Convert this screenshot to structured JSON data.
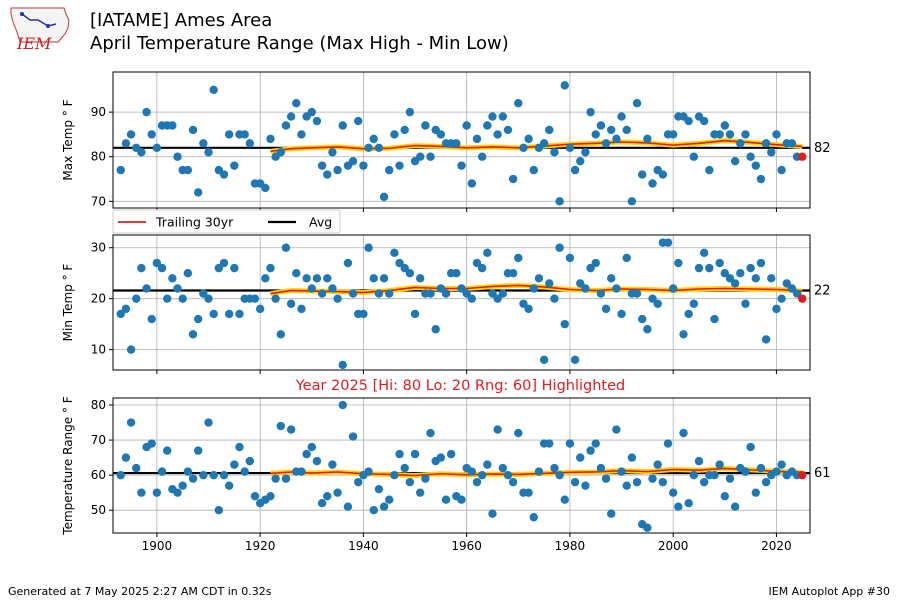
{
  "header": {
    "logo_text": "IEM",
    "title_line1": "[IATAME] Ames Area",
    "title_line2": "April Temperature Range (Max High - Min Low)"
  },
  "footer": {
    "left": "Generated at 7 May 2025 2:27 AM CDT in 0.32s",
    "right": "IEM Autoplot App #30"
  },
  "legend": {
    "trailing_label": "Trailing 30yr",
    "avg_label": "Avg"
  },
  "colors": {
    "points": "#1f77b4",
    "avg": "#000000",
    "trailing": "#e41a1c",
    "trailing_glow": "#ffd400",
    "highlight_title": "#e41a1c",
    "grid": "#b0b0b0"
  },
  "chart_data": [
    {
      "type": "scatter",
      "ylabel": "Max Temp ° F",
      "ylim": [
        68.5,
        99
      ],
      "yticks": [
        70,
        80,
        90
      ],
      "avg": 82,
      "avg_label": "82",
      "highlight": {
        "x": 2025,
        "y": 80
      },
      "x": [
        1893,
        1894,
        1895,
        1896,
        1897,
        1898,
        1899,
        1900,
        1901,
        1902,
        1903,
        1904,
        1905,
        1906,
        1907,
        1908,
        1909,
        1910,
        1911,
        1912,
        1913,
        1914,
        1915,
        1916,
        1917,
        1918,
        1919,
        1920,
        1921,
        1922,
        1923,
        1924,
        1925,
        1926,
        1927,
        1928,
        1929,
        1930,
        1931,
        1932,
        1933,
        1934,
        1935,
        1936,
        1937,
        1938,
        1939,
        1940,
        1941,
        1942,
        1943,
        1944,
        1945,
        1946,
        1947,
        1948,
        1949,
        1950,
        1951,
        1952,
        1953,
        1954,
        1955,
        1956,
        1957,
        1958,
        1959,
        1960,
        1961,
        1962,
        1963,
        1964,
        1965,
        1966,
        1967,
        1968,
        1969,
        1970,
        1971,
        1972,
        1973,
        1974,
        1975,
        1976,
        1977,
        1978,
        1979,
        1980,
        1981,
        1982,
        1983,
        1984,
        1985,
        1986,
        1987,
        1988,
        1989,
        1990,
        1991,
        1992,
        1993,
        1994,
        1995,
        1996,
        1997,
        1998,
        1999,
        2000,
        2001,
        2002,
        2003,
        2004,
        2005,
        2006,
        2007,
        2008,
        2009,
        2010,
        2011,
        2012,
        2013,
        2014,
        2015,
        2016,
        2017,
        2018,
        2019,
        2020,
        2021,
        2022,
        2023,
        2024,
        2025
      ],
      "y": [
        77,
        83,
        85,
        82,
        81,
        90,
        85,
        82,
        87,
        87,
        87,
        80,
        77,
        77,
        86,
        72,
        83,
        81,
        95,
        77,
        76,
        85,
        78,
        85,
        85,
        83,
        74,
        74,
        73,
        84,
        80,
        81,
        87,
        89,
        92,
        85,
        89,
        90,
        88,
        78,
        76,
        81,
        77,
        87,
        78,
        79,
        88,
        78,
        82,
        84,
        82,
        71,
        77,
        85,
        78,
        86,
        90,
        79,
        80,
        87,
        80,
        86,
        85,
        83,
        83,
        83,
        78,
        87,
        74,
        84,
        80,
        87,
        89,
        85,
        89,
        86,
        75,
        92,
        82,
        84,
        77,
        82,
        83,
        86,
        81,
        70,
        96,
        82,
        77,
        79,
        81,
        90,
        85,
        87,
        83,
        86,
        84,
        89,
        86,
        70,
        92,
        76,
        84,
        74,
        77,
        76,
        85,
        85,
        89,
        89,
        88,
        80,
        89,
        88,
        77,
        85,
        85,
        87,
        85,
        79,
        83,
        85,
        80,
        78,
        75,
        83,
        81,
        85,
        77,
        83,
        83,
        80,
        80
      ],
      "trailing": [
        [
          1922,
          81.2
        ],
        [
          1926,
          81.8
        ],
        [
          1930,
          82.0
        ],
        [
          1935,
          82.2
        ],
        [
          1940,
          81.8
        ],
        [
          1945,
          81.9
        ],
        [
          1950,
          82.5
        ],
        [
          1955,
          82.3
        ],
        [
          1960,
          82.0
        ],
        [
          1965,
          82.2
        ],
        [
          1970,
          82.0
        ],
        [
          1975,
          82.4
        ],
        [
          1980,
          82.8
        ],
        [
          1985,
          83.0
        ],
        [
          1990,
          83.3
        ],
        [
          1995,
          83.1
        ],
        [
          2000,
          82.6
        ],
        [
          2005,
          83.0
        ],
        [
          2010,
          83.6
        ],
        [
          2015,
          83.2
        ],
        [
          2020,
          82.7
        ],
        [
          2025,
          82.3
        ]
      ]
    },
    {
      "type": "scatter",
      "ylabel": "Min Temp ° F",
      "ylim": [
        6,
        32.5
      ],
      "yticks": [
        10,
        20,
        30
      ],
      "avg": 21.6,
      "avg_label": "22",
      "highlight": {
        "x": 2025,
        "y": 20
      },
      "x": [
        1893,
        1894,
        1895,
        1896,
        1897,
        1898,
        1899,
        1900,
        1901,
        1902,
        1903,
        1904,
        1905,
        1906,
        1907,
        1908,
        1909,
        1910,
        1911,
        1912,
        1913,
        1914,
        1915,
        1916,
        1917,
        1918,
        1919,
        1920,
        1921,
        1922,
        1923,
        1924,
        1925,
        1926,
        1927,
        1928,
        1929,
        1930,
        1931,
        1932,
        1933,
        1934,
        1935,
        1936,
        1937,
        1938,
        1939,
        1940,
        1941,
        1942,
        1943,
        1944,
        1945,
        1946,
        1947,
        1948,
        1949,
        1950,
        1951,
        1952,
        1953,
        1954,
        1955,
        1956,
        1957,
        1958,
        1959,
        1960,
        1961,
        1962,
        1963,
        1964,
        1965,
        1966,
        1967,
        1968,
        1969,
        1970,
        1971,
        1972,
        1973,
        1974,
        1975,
        1976,
        1977,
        1978,
        1979,
        1980,
        1981,
        1982,
        1983,
        1984,
        1985,
        1986,
        1987,
        1988,
        1989,
        1990,
        1991,
        1992,
        1993,
        1994,
        1995,
        1996,
        1997,
        1998,
        1999,
        2000,
        2001,
        2002,
        2003,
        2004,
        2005,
        2006,
        2007,
        2008,
        2009,
        2010,
        2011,
        2012,
        2013,
        2014,
        2015,
        2016,
        2017,
        2018,
        2019,
        2020,
        2021,
        2022,
        2023,
        2024,
        2025
      ],
      "y": [
        17,
        18,
        10,
        20,
        26,
        22,
        16,
        27,
        26,
        20,
        24,
        22,
        20,
        25,
        13,
        16,
        21,
        20,
        17,
        26,
        27,
        17,
        26,
        17,
        20,
        20,
        20,
        18,
        24,
        26,
        20,
        13,
        30,
        19,
        25,
        18,
        24,
        22,
        24,
        21,
        24,
        22,
        20,
        7,
        27,
        21,
        17,
        17,
        30,
        24,
        21,
        24,
        21,
        29,
        27,
        26,
        25,
        17,
        24,
        21,
        21,
        14,
        22,
        21,
        25,
        25,
        22,
        21,
        20,
        27,
        26,
        29,
        21,
        20,
        21,
        25,
        25,
        28,
        19,
        18,
        22,
        24,
        8,
        23,
        20,
        30,
        15,
        28,
        8,
        23,
        22,
        26,
        27,
        21,
        18,
        24,
        22,
        17,
        28,
        21,
        21,
        16,
        14,
        20,
        19,
        31,
        31,
        22,
        27,
        13,
        17,
        19,
        26,
        29,
        26,
        16,
        27,
        25,
        24,
        23,
        25,
        19,
        26,
        24,
        27,
        12,
        24,
        18,
        20,
        23,
        22,
        21,
        20
      ],
      "trailing": [
        [
          1922,
          21.0
        ],
        [
          1926,
          21.6
        ],
        [
          1930,
          21.5
        ],
        [
          1935,
          21.4
        ],
        [
          1940,
          21.2
        ],
        [
          1945,
          21.6
        ],
        [
          1950,
          22.2
        ],
        [
          1955,
          22.0
        ],
        [
          1960,
          22.0
        ],
        [
          1965,
          22.4
        ],
        [
          1970,
          22.6
        ],
        [
          1975,
          22.3
        ],
        [
          1980,
          21.8
        ],
        [
          1985,
          21.6
        ],
        [
          1990,
          21.9
        ],
        [
          1995,
          21.8
        ],
        [
          2000,
          21.6
        ],
        [
          2005,
          21.9
        ],
        [
          2010,
          22.0
        ],
        [
          2015,
          21.9
        ],
        [
          2020,
          21.8
        ],
        [
          2025,
          21.5
        ]
      ]
    },
    {
      "type": "scatter",
      "title": "Year 2025 [Hi: 80 Lo: 20 Rng: 60] Highlighted",
      "ylabel": "Temperature Range ° F",
      "ylim": [
        43.5,
        82
      ],
      "yticks": [
        50,
        60,
        70,
        80
      ],
      "xticks": [
        1900,
        1920,
        1940,
        1960,
        1980,
        2000,
        2020
      ],
      "xlim": [
        1891.5,
        2026.5
      ],
      "avg": 60.6,
      "avg_label": "61",
      "highlight": {
        "x": 2025,
        "y": 60
      },
      "x": [
        1893,
        1894,
        1895,
        1896,
        1897,
        1898,
        1899,
        1900,
        1901,
        1902,
        1903,
        1904,
        1905,
        1906,
        1907,
        1908,
        1909,
        1910,
        1911,
        1912,
        1913,
        1914,
        1915,
        1916,
        1917,
        1918,
        1919,
        1920,
        1921,
        1922,
        1923,
        1924,
        1925,
        1926,
        1927,
        1928,
        1929,
        1930,
        1931,
        1932,
        1933,
        1934,
        1935,
        1936,
        1937,
        1938,
        1939,
        1940,
        1941,
        1942,
        1943,
        1944,
        1945,
        1946,
        1947,
        1948,
        1949,
        1950,
        1951,
        1952,
        1953,
        1954,
        1955,
        1956,
        1957,
        1958,
        1959,
        1960,
        1961,
        1962,
        1963,
        1964,
        1965,
        1966,
        1967,
        1968,
        1969,
        1970,
        1971,
        1972,
        1973,
        1974,
        1975,
        1976,
        1977,
        1978,
        1979,
        1980,
        1981,
        1982,
        1983,
        1984,
        1985,
        1986,
        1987,
        1988,
        1989,
        1990,
        1991,
        1992,
        1993,
        1994,
        1995,
        1996,
        1997,
        1998,
        1999,
        2000,
        2001,
        2002,
        2003,
        2004,
        2005,
        2006,
        2007,
        2008,
        2009,
        2010,
        2011,
        2012,
        2013,
        2014,
        2015,
        2016,
        2017,
        2018,
        2019,
        2020,
        2021,
        2022,
        2023,
        2024,
        2025
      ],
      "y": [
        60,
        65,
        75,
        62,
        55,
        68,
        69,
        55,
        61,
        67,
        56,
        55,
        57,
        61,
        59,
        67,
        60,
        75,
        60,
        50,
        60,
        57,
        63,
        68,
        61,
        64,
        54,
        52,
        53,
        54,
        59,
        74,
        59,
        73,
        61,
        61,
        66,
        68,
        64,
        52,
        54,
        63,
        55,
        80,
        51,
        71,
        58,
        60,
        61,
        50,
        56,
        51,
        53,
        60,
        66,
        62,
        58,
        66,
        55,
        59,
        72,
        64,
        65,
        53,
        66,
        54,
        53,
        62,
        61,
        58,
        60,
        63,
        49,
        73,
        62,
        60,
        58,
        72,
        55,
        55,
        48,
        61,
        69,
        69,
        62,
        60,
        53,
        69,
        58,
        65,
        57,
        67,
        69,
        62,
        59,
        49,
        73,
        61,
        57,
        65,
        58,
        46,
        45,
        59,
        63,
        58,
        69,
        55,
        51,
        72,
        52,
        60,
        64,
        58,
        60,
        60,
        63,
        54,
        59,
        51,
        62,
        61,
        68,
        55,
        62,
        58,
        60,
        61,
        63,
        60,
        61,
        60,
        60
      ],
      "trailing": [
        [
          1922,
          60.5
        ],
        [
          1926,
          60.9
        ],
        [
          1930,
          60.6
        ],
        [
          1935,
          60.9
        ],
        [
          1940,
          60.4
        ],
        [
          1945,
          60.2
        ],
        [
          1950,
          59.9
        ],
        [
          1955,
          60.4
        ],
        [
          1960,
          60.1
        ],
        [
          1965,
          60.3
        ],
        [
          1970,
          60.2
        ],
        [
          1975,
          60.5
        ],
        [
          1980,
          60.8
        ],
        [
          1985,
          60.9
        ],
        [
          1990,
          61.3
        ],
        [
          1995,
          61.0
        ],
        [
          2000,
          61.6
        ],
        [
          2005,
          61.4
        ],
        [
          2010,
          61.9
        ],
        [
          2015,
          61.5
        ],
        [
          2020,
          61.1
        ],
        [
          2025,
          60.8
        ]
      ]
    }
  ]
}
